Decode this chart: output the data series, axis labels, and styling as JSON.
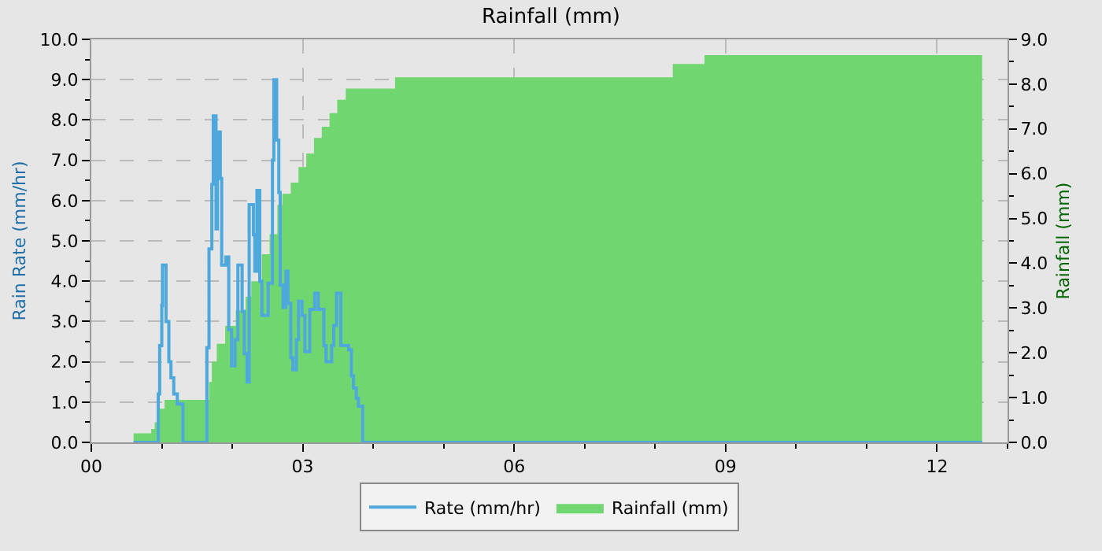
{
  "chart_data": {
    "type": "area",
    "title": "Rainfall (mm)",
    "ylabel": "Rain Rate (mm/hr)",
    "y2label": "Rainfall (mm)",
    "xlim": [
      0,
      13
    ],
    "xticks": [
      {
        "value": 0,
        "label": "00"
      },
      {
        "value": 1,
        "label": null
      },
      {
        "value": 2,
        "label": null
      },
      {
        "value": 3,
        "label": "03"
      },
      {
        "value": 4,
        "label": null
      },
      {
        "value": 5,
        "label": null
      },
      {
        "value": 6,
        "label": "06"
      },
      {
        "value": 7,
        "label": null
      },
      {
        "value": 8,
        "label": null
      },
      {
        "value": 9,
        "label": "09"
      },
      {
        "value": 10,
        "label": null
      },
      {
        "value": 11,
        "label": null
      },
      {
        "value": 12,
        "label": "12"
      },
      {
        "value": 13,
        "label": null
      }
    ],
    "ylim": [
      0,
      10
    ],
    "yticks": [
      {
        "value": 0,
        "label": "0.0"
      },
      {
        "value": 0.5,
        "label": null
      },
      {
        "value": 1,
        "label": "1.0"
      },
      {
        "value": 1.5,
        "label": null
      },
      {
        "value": 2,
        "label": "2.0"
      },
      {
        "value": 2.5,
        "label": null
      },
      {
        "value": 3,
        "label": "3.0"
      },
      {
        "value": 3.5,
        "label": null
      },
      {
        "value": 4,
        "label": "4.0"
      },
      {
        "value": 4.5,
        "label": null
      },
      {
        "value": 5,
        "label": "5.0"
      },
      {
        "value": 5.5,
        "label": null
      },
      {
        "value": 6,
        "label": "6.0"
      },
      {
        "value": 6.5,
        "label": null
      },
      {
        "value": 7,
        "label": "7.0"
      },
      {
        "value": 7.5,
        "label": null
      },
      {
        "value": 8,
        "label": "8.0"
      },
      {
        "value": 8.5,
        "label": null
      },
      {
        "value": 9,
        "label": "9.0"
      },
      {
        "value": 9.5,
        "label": null
      },
      {
        "value": 10,
        "label": "10.0"
      }
    ],
    "y2lim": [
      0,
      9
    ],
    "y2ticks": [
      {
        "value": 0,
        "label": "0.0"
      },
      {
        "value": 0.5,
        "label": null
      },
      {
        "value": 1,
        "label": "1.0"
      },
      {
        "value": 1.5,
        "label": null
      },
      {
        "value": 2,
        "label": "2.0"
      },
      {
        "value": 2.5,
        "label": null
      },
      {
        "value": 3,
        "label": "3.0"
      },
      {
        "value": 3.5,
        "label": null
      },
      {
        "value": 4,
        "label": "4.0"
      },
      {
        "value": 4.5,
        "label": null
      },
      {
        "value": 5,
        "label": "5.0"
      },
      {
        "value": 5.5,
        "label": null
      },
      {
        "value": 6,
        "label": "6.0"
      },
      {
        "value": 6.5,
        "label": null
      },
      {
        "value": 7,
        "label": "7.0"
      },
      {
        "value": 7.5,
        "label": null
      },
      {
        "value": 8,
        "label": "8.0"
      },
      {
        "value": 8.5,
        "label": null
      },
      {
        "value": 9,
        "label": "9.0"
      }
    ],
    "grid": true,
    "legend": "bottom",
    "series": [
      {
        "name": "Rainfall (mm)",
        "axis": "y2",
        "color": "#70d670",
        "x": [
          0.6,
          0.85,
          0.9,
          0.95,
          1.04,
          1.6,
          1.67,
          1.71,
          1.78,
          1.9,
          2.05,
          2.19,
          2.27,
          2.42,
          2.53,
          2.64,
          2.71,
          2.83,
          2.94,
          3.05,
          3.16,
          3.27,
          3.38,
          3.49,
          3.61,
          4.31,
          8.25,
          8.7,
          12.64
        ],
        "values": [
          0.2,
          0.3,
          0.45,
          0.75,
          0.95,
          0.95,
          1.35,
          1.8,
          2.2,
          2.6,
          2.95,
          3.25,
          3.6,
          4.2,
          4.65,
          5.3,
          5.55,
          5.8,
          6.15,
          6.45,
          6.8,
          7.05,
          7.35,
          7.65,
          7.9,
          8.15,
          8.45,
          8.65,
          8.65
        ]
      },
      {
        "name": "Rate (mm/hr)",
        "type": "step",
        "axis": "y",
        "color": "#4ea8dc",
        "x": [
          0.6,
          0.95,
          0.97,
          1.0,
          1.01,
          1.06,
          1.1,
          1.13,
          1.17,
          1.22,
          1.3,
          1.64,
          1.67,
          1.71,
          1.73,
          1.77,
          1.79,
          1.83,
          1.85,
          1.91,
          1.95,
          1.99,
          2.04,
          2.08,
          2.14,
          2.17,
          2.21,
          2.24,
          2.3,
          2.32,
          2.35,
          2.39,
          2.42,
          2.51,
          2.57,
          2.59,
          2.63,
          2.66,
          2.68,
          2.72,
          2.76,
          2.79,
          2.83,
          2.86,
          2.91,
          2.94,
          2.99,
          3.03,
          3.1,
          3.17,
          3.22,
          3.3,
          3.33,
          3.41,
          3.44,
          3.48,
          3.54,
          3.65,
          3.69,
          3.72,
          3.76,
          3.79,
          3.85,
          12.64
        ],
        "values": [
          0,
          1.2,
          2.4,
          3.4,
          4.4,
          3.0,
          2.0,
          1.6,
          1.2,
          0.95,
          0,
          2.35,
          4.8,
          6.4,
          8.1,
          5.3,
          7.7,
          6.55,
          4.4,
          4.6,
          2.8,
          1.9,
          2.55,
          4.4,
          3.25,
          2.2,
          1.5,
          5.9,
          5.15,
          4.25,
          6.25,
          4.0,
          3.15,
          3.95,
          7.0,
          9.0,
          7.5,
          6.2,
          3.9,
          3.35,
          4.25,
          3.45,
          2.1,
          1.8,
          2.55,
          3.5,
          3.15,
          2.25,
          3.3,
          3.7,
          3.3,
          2.4,
          2.0,
          2.4,
          2.9,
          3.7,
          2.4,
          2.3,
          1.65,
          1.35,
          1.1,
          0.9,
          0,
          0
        ]
      }
    ]
  }
}
